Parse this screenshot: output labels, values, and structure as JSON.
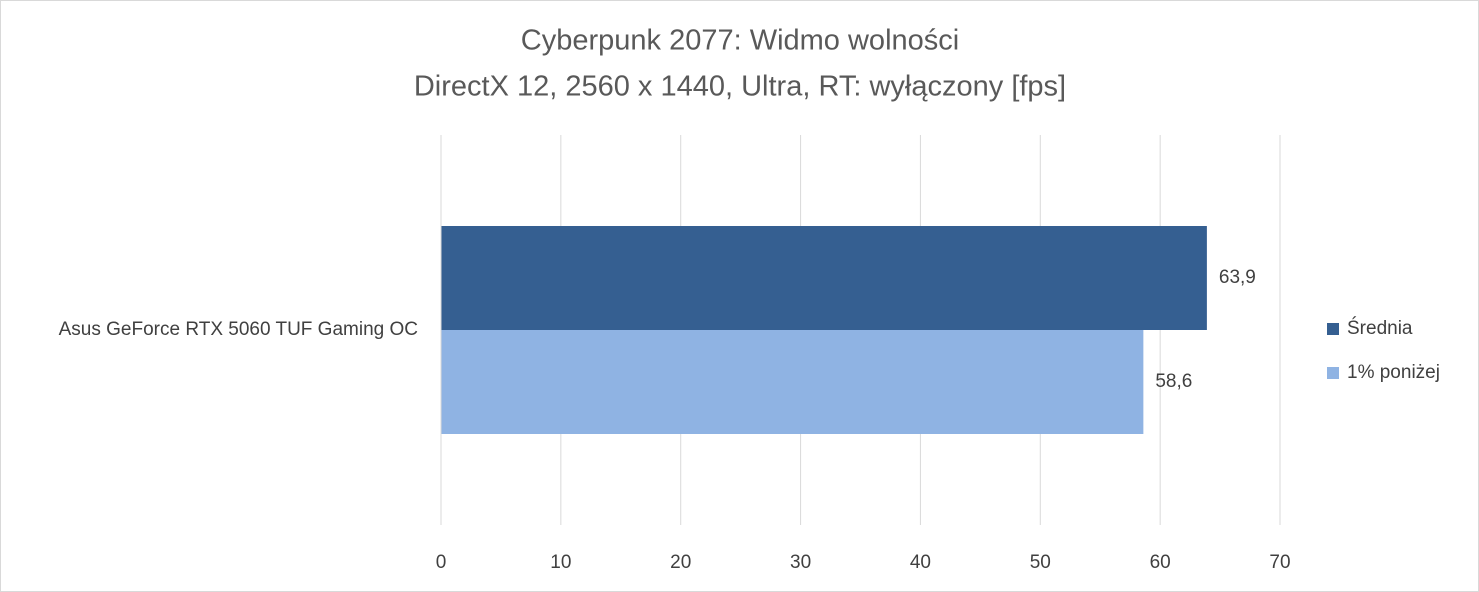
{
  "chart_data": {
    "type": "bar",
    "orientation": "horizontal",
    "title": "Cyberpunk 2077: Widmo wolności",
    "subtitle": "DirectX 12, 2560 x 1440, Ultra, RT: wyłączony [fps]",
    "categories": [
      "Asus GeForce RTX 5060 TUF Gaming OC"
    ],
    "series": [
      {
        "name": "Średnia",
        "color": "#355f91",
        "values": [
          63.9
        ],
        "value_labels": [
          "63,9"
        ]
      },
      {
        "name": "1% poniżej",
        "color": "#8fb3e3",
        "values": [
          58.6
        ],
        "value_labels": [
          "58,6"
        ]
      }
    ],
    "xlim": [
      0,
      70
    ],
    "xticks": [
      0,
      10,
      20,
      30,
      40,
      50,
      60,
      70
    ],
    "grid": true,
    "legend": "right"
  }
}
